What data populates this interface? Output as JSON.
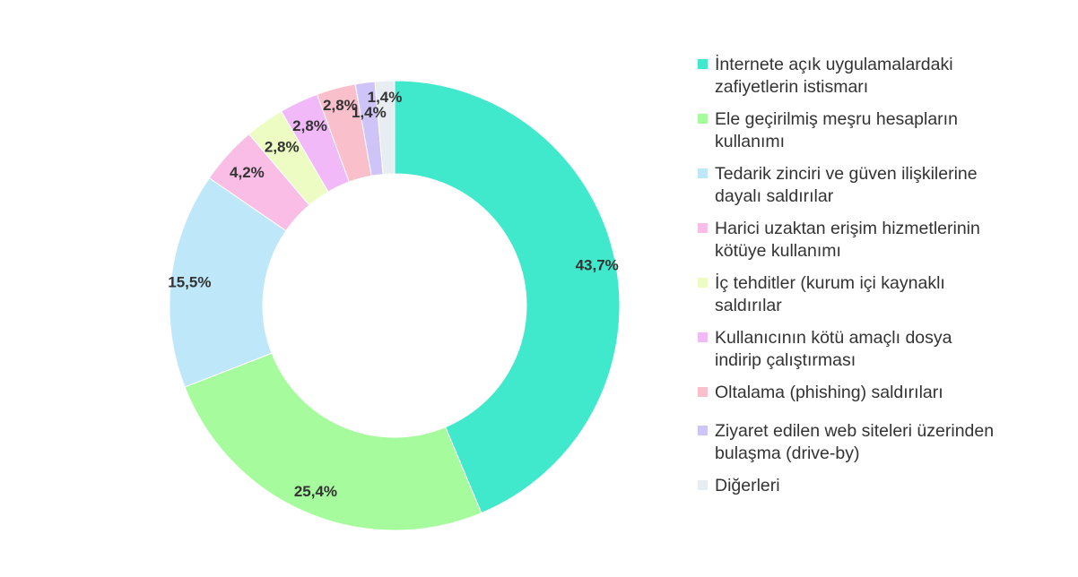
{
  "chart_data": {
    "type": "pie",
    "variant": "donut",
    "title": "",
    "legend_position": "right",
    "slices": [
      {
        "label": "İnternete açık uygulamalardaki zafiyetlerin istismarı",
        "value": 43.7,
        "display": "43,7%",
        "color": "#40E8CC"
      },
      {
        "label": "Ele geçirilmiş meşru hesapların kullanımı",
        "value": 25.4,
        "display": "25,4%",
        "color": "#A6FB9C"
      },
      {
        "label": "Tedarik zinciri ve güven ilişkilerine dayalı saldırılar",
        "value": 15.5,
        "display": "15,5%",
        "color": "#BEE7FA"
      },
      {
        "label": "Harici uzaktan erişim hizmetlerinin kötüye kullanımı",
        "value": 4.2,
        "display": "4,2%",
        "color": "#F9BDE6"
      },
      {
        "label": "İç tehditler (kurum içi kaynaklı saldırılar",
        "value": 2.8,
        "display": "2,8%",
        "color": "#EDFCC2"
      },
      {
        "label": "Kullanıcının kötü amaçlı dosya indirip çalıştırması",
        "value": 2.8,
        "display": "2,8%",
        "color": "#F2B9F9"
      },
      {
        "label": "Oltalama (phishing) saldırıları",
        "value": 2.8,
        "display": "2,8%",
        "color": "#F9BFCB"
      },
      {
        "label": "Ziyaret edilen web siteleri üzerinden bulaşma (drive-by)",
        "value": 1.4,
        "display": "1,4%",
        "color": "#CFC4F8"
      },
      {
        "label": "Diğerleri",
        "value": 1.4,
        "display": "1,4%",
        "color": "#E8EDF1"
      }
    ]
  }
}
